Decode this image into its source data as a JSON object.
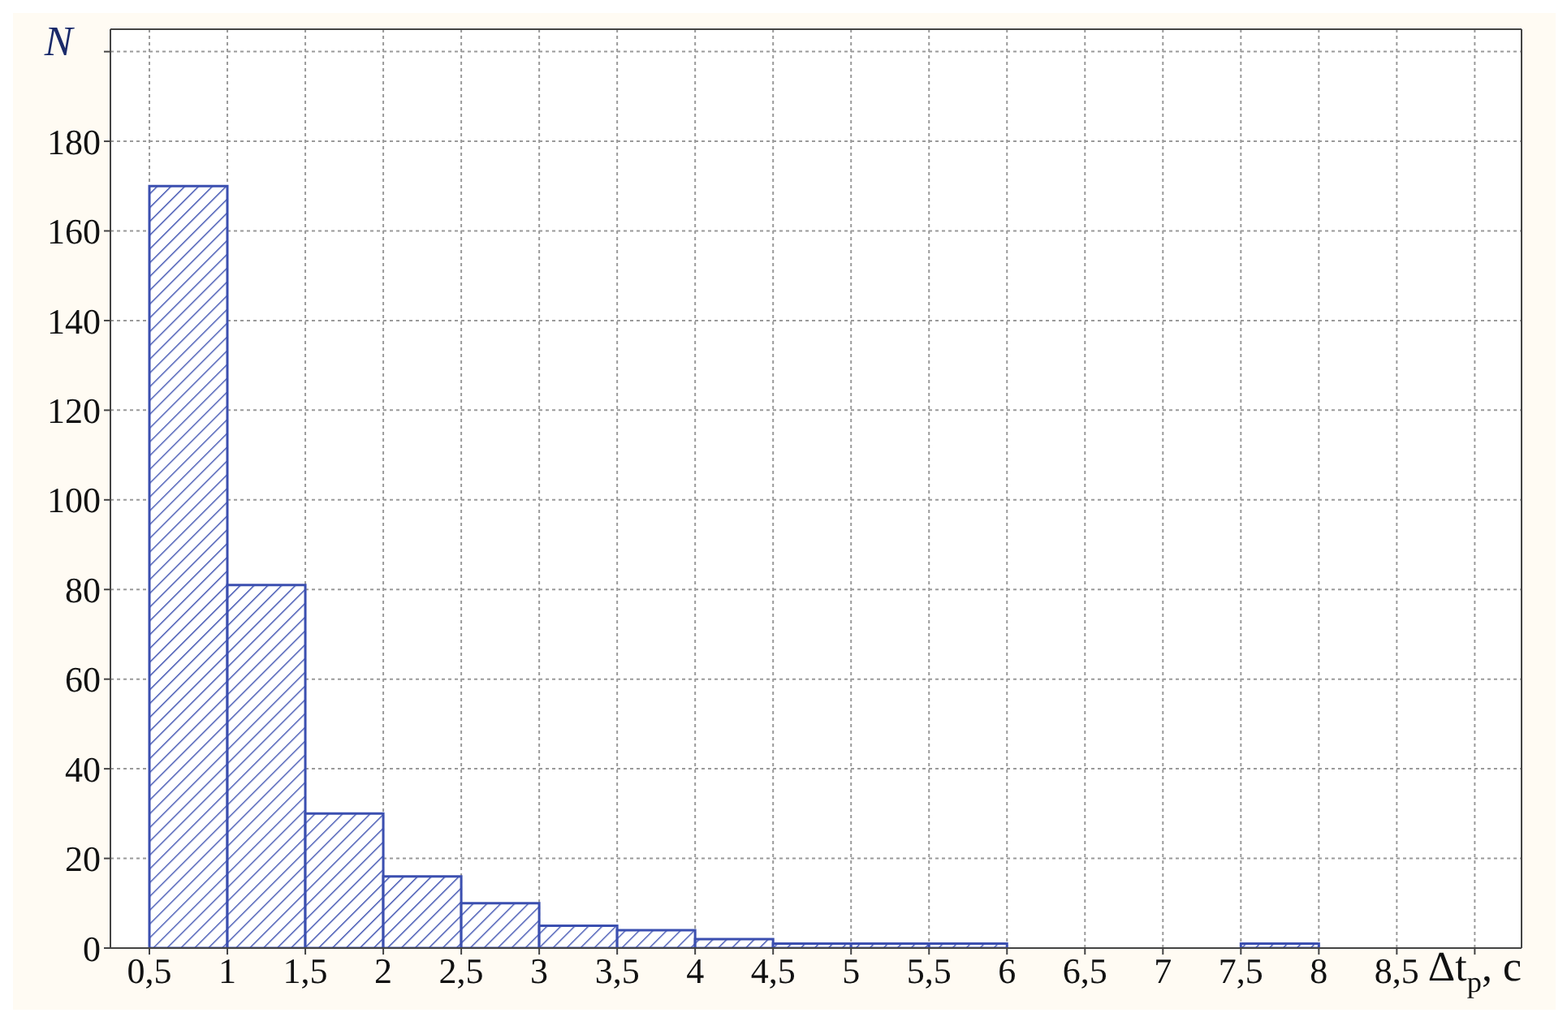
{
  "chart_data": {
    "type": "histogram",
    "xlabel": "Δt$_{p}$, c",
    "ylabel": "N",
    "bins": [
      0.5,
      1,
      1.5,
      2,
      2.5,
      3,
      3.5,
      4,
      4.5,
      5,
      5.5,
      6,
      6.5,
      7,
      7.5,
      8,
      8.5,
      9
    ],
    "values": [
      170,
      81,
      30,
      16,
      10,
      5,
      4,
      2,
      1,
      1,
      1,
      0,
      0,
      0,
      1,
      0,
      0
    ],
    "color": "#3b4fb0",
    "xlim": [
      0.25,
      9.3
    ],
    "xticks": [
      {
        "value": 0.5,
        "label": "0,5"
      },
      1,
      {
        "value": 1.5,
        "label": "1,5"
      },
      2,
      {
        "value": 2.5,
        "label": "2,5"
      },
      3,
      {
        "value": 3.5,
        "label": "3,5"
      },
      4,
      {
        "value": 4.5,
        "label": "4,5"
      },
      5,
      {
        "value": 5.5,
        "label": "5,5"
      },
      6,
      {
        "value": 6.5,
        "label": "6,5"
      },
      7,
      {
        "value": 7.5,
        "label": "7,5"
      },
      8,
      {
        "value": 8.5,
        "label": "8,5"
      },
      {
        "value": 9,
        "label": null
      }
    ],
    "ylim": [
      0,
      205
    ],
    "yticks": [
      0,
      20,
      40,
      60,
      80,
      100,
      120,
      140,
      160,
      180,
      {
        "value": 200,
        "label": null
      }
    ],
    "grid": true
  }
}
